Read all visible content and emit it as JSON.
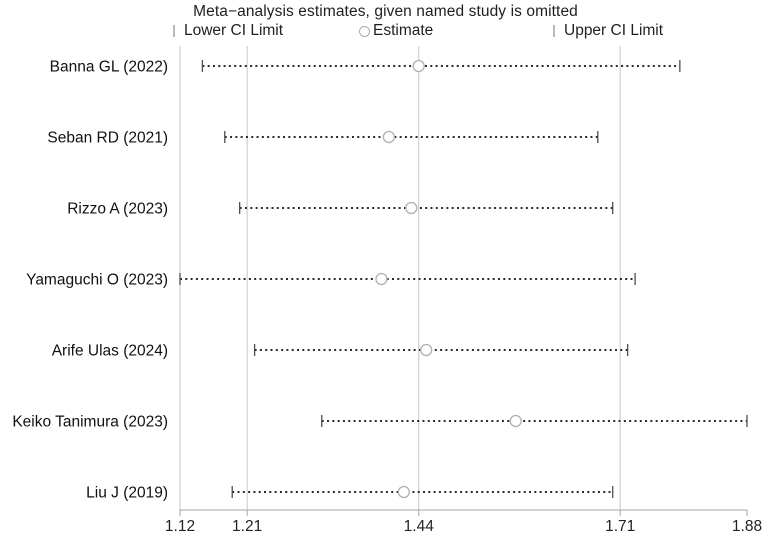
{
  "title": "Meta−analysis estimates, given named study is omitted",
  "legend": {
    "lower_label": "Lower CI Limit",
    "estimate_label": "Estimate",
    "upper_label": "Upper CI Limit"
  },
  "colors": {
    "dots": "#2a2a2a",
    "end_tick": "#4d4d4d",
    "estimate_circle": "#b0b0b0",
    "gridline": "#c7c7c7",
    "axis": "#a6a6a6",
    "text": "#1a1a1a"
  },
  "chart_data": {
    "type": "scatter",
    "subtype": "leave-one-out-forest",
    "title": "Meta−analysis estimates, given named study is omitted",
    "xlabel": "",
    "ylabel": "",
    "xlim": [
      1.12,
      1.88
    ],
    "x_ticks": [
      1.12,
      1.21,
      1.44,
      1.71,
      1.88
    ],
    "x_tick_labels": [
      "1.12",
      "1.21",
      "1.44",
      "1.71",
      "1.88"
    ],
    "gridlines": [
      1.21,
      1.44,
      1.71
    ],
    "grid": "vertical-only",
    "legend_position": "top",
    "studies": [
      {
        "label": "Banna GL (2022)",
        "lower": 1.15,
        "estimate": 1.44,
        "upper": 1.79
      },
      {
        "label": "Seban RD (2021)",
        "lower": 1.18,
        "estimate": 1.4,
        "upper": 1.68
      },
      {
        "label": "Rizzo A (2023)",
        "lower": 1.2,
        "estimate": 1.43,
        "upper": 1.7
      },
      {
        "label": "Yamaguchi O (2023)",
        "lower": 1.12,
        "estimate": 1.39,
        "upper": 1.73
      },
      {
        "label": "Arife Ulas (2024)",
        "lower": 1.22,
        "estimate": 1.45,
        "upper": 1.72
      },
      {
        "label": "Keiko Tanimura (2023)",
        "lower": 1.31,
        "estimate": 1.57,
        "upper": 1.88
      },
      {
        "label": "Liu J  (2019)",
        "lower": 1.19,
        "estimate": 1.42,
        "upper": 1.7
      }
    ]
  }
}
